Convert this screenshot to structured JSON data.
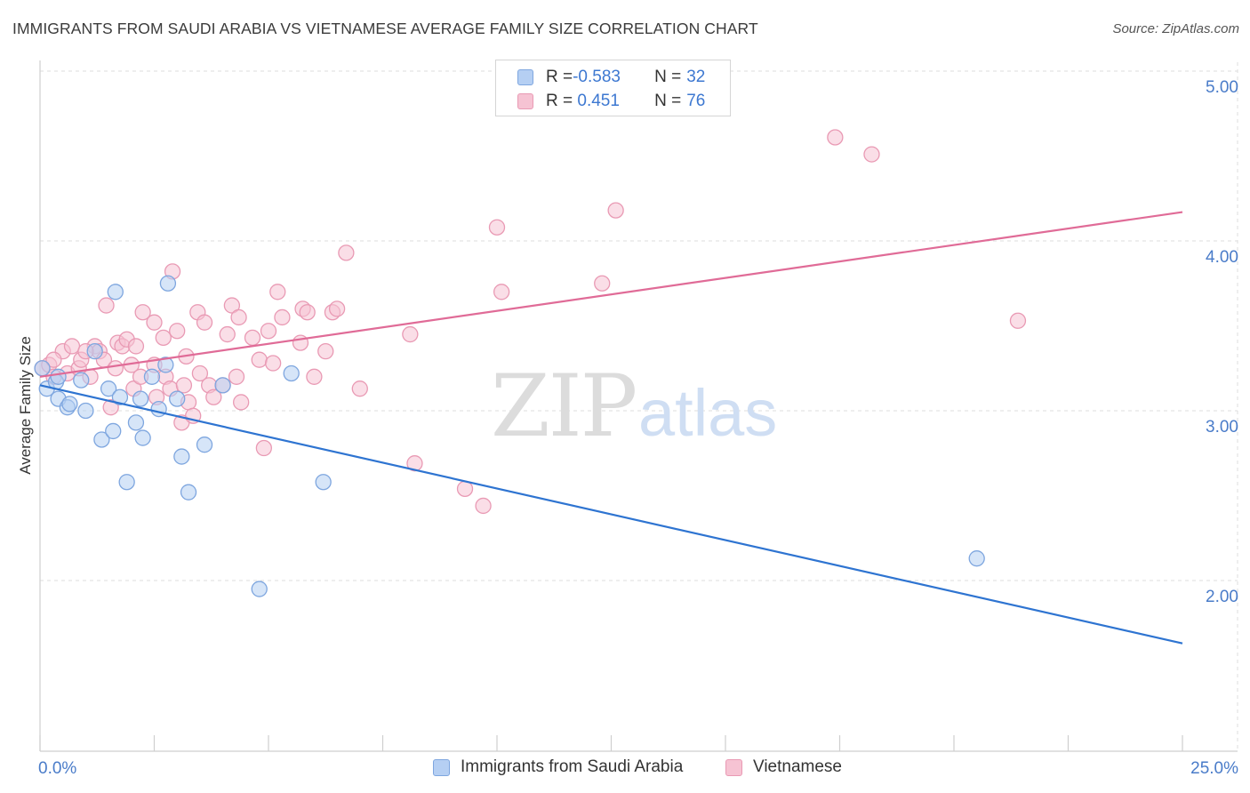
{
  "header": {
    "title": "IMMIGRANTS FROM SAUDI ARABIA VS VIETNAMESE AVERAGE FAMILY SIZE CORRELATION CHART",
    "source": "Source: ZipAtlas.com"
  },
  "watermark": {
    "zip": "ZIP",
    "atlas": "atlas"
  },
  "legend_stats": {
    "blue": {
      "r_label": "R = ",
      "r_value": "-0.583",
      "n_label": "N = ",
      "n_value": "32"
    },
    "pink": {
      "r_label": "R = ",
      "r_value": " 0.451",
      "n_label": "N = ",
      "n_value": "76"
    }
  },
  "bottom_legend": {
    "blue": "Immigrants from Saudi Arabia",
    "pink": "Vietnamese"
  },
  "colors": {
    "blue_fill": "#b5cff3",
    "blue_stroke": "#7ea6df",
    "blue_line": "#2e74d1",
    "pink_fill": "#f6c3d3",
    "pink_stroke": "#e99ab4",
    "pink_line": "#e06b97",
    "grid": "#dddddd",
    "axis_label": "#4a7cc9"
  },
  "chart_data": {
    "type": "scatter",
    "title": "IMMIGRANTS FROM SAUDI ARABIA VS VIETNAMESE AVERAGE FAMILY SIZE CORRELATION CHART",
    "xlabel": "",
    "ylabel": "Average Family Size",
    "xlim": [
      0,
      25
    ],
    "ylim": [
      1.0,
      5.1
    ],
    "x_tick_labels": [
      "0.0%",
      "25.0%"
    ],
    "y_ticks": [
      2.0,
      3.0,
      4.0,
      5.0
    ],
    "y_tick_labels": [
      "2.00",
      "3.00",
      "4.00",
      "5.00"
    ],
    "grid": true,
    "series": [
      {
        "name": "Immigrants from Saudi Arabia",
        "color": "blue",
        "points": [
          [
            0.05,
            3.25
          ],
          [
            0.15,
            3.13
          ],
          [
            0.35,
            3.17
          ],
          [
            0.4,
            3.2
          ],
          [
            0.4,
            3.07
          ],
          [
            0.6,
            3.02
          ],
          [
            0.65,
            3.04
          ],
          [
            0.9,
            3.18
          ],
          [
            1.0,
            3.0
          ],
          [
            1.2,
            3.35
          ],
          [
            1.35,
            2.83
          ],
          [
            1.5,
            3.13
          ],
          [
            1.6,
            2.88
          ],
          [
            1.65,
            3.7
          ],
          [
            1.75,
            3.08
          ],
          [
            1.9,
            2.58
          ],
          [
            2.1,
            2.93
          ],
          [
            2.2,
            3.07
          ],
          [
            2.25,
            2.84
          ],
          [
            2.45,
            3.2
          ],
          [
            2.6,
            3.01
          ],
          [
            2.75,
            3.27
          ],
          [
            2.8,
            3.75
          ],
          [
            3.0,
            3.07
          ],
          [
            3.1,
            2.73
          ],
          [
            3.25,
            2.52
          ],
          [
            3.6,
            2.8
          ],
          [
            4.0,
            3.15
          ],
          [
            4.8,
            1.95
          ],
          [
            5.5,
            3.22
          ],
          [
            6.2,
            2.58
          ],
          [
            20.5,
            2.13
          ]
        ],
        "trend": {
          "x": [
            0,
            25
          ],
          "y": [
            3.15,
            1.63
          ]
        }
      },
      {
        "name": "Vietnamese",
        "color": "pink",
        "points": [
          [
            0.05,
            3.25
          ],
          [
            0.2,
            3.27
          ],
          [
            0.3,
            3.2
          ],
          [
            0.5,
            3.35
          ],
          [
            0.6,
            3.22
          ],
          [
            0.7,
            3.38
          ],
          [
            0.85,
            3.25
          ],
          [
            0.9,
            3.3
          ],
          [
            1.1,
            3.2
          ],
          [
            1.2,
            3.38
          ],
          [
            1.3,
            3.35
          ],
          [
            1.4,
            3.3
          ],
          [
            1.45,
            3.62
          ],
          [
            1.55,
            3.02
          ],
          [
            1.65,
            3.25
          ],
          [
            1.7,
            3.4
          ],
          [
            1.8,
            3.38
          ],
          [
            1.9,
            3.42
          ],
          [
            2.0,
            3.27
          ],
          [
            2.05,
            3.13
          ],
          [
            2.1,
            3.38
          ],
          [
            2.2,
            3.2
          ],
          [
            2.25,
            3.58
          ],
          [
            2.5,
            3.52
          ],
          [
            2.55,
            3.08
          ],
          [
            2.7,
            3.43
          ],
          [
            2.75,
            3.2
          ],
          [
            2.85,
            3.13
          ],
          [
            2.9,
            3.82
          ],
          [
            3.0,
            3.47
          ],
          [
            3.1,
            2.93
          ],
          [
            3.15,
            3.15
          ],
          [
            3.25,
            3.05
          ],
          [
            3.35,
            2.97
          ],
          [
            3.45,
            3.58
          ],
          [
            3.5,
            3.22
          ],
          [
            3.6,
            3.52
          ],
          [
            3.7,
            3.15
          ],
          [
            3.8,
            3.08
          ],
          [
            4.0,
            3.15
          ],
          [
            4.1,
            3.45
          ],
          [
            4.2,
            3.62
          ],
          [
            4.3,
            3.2
          ],
          [
            4.35,
            3.55
          ],
          [
            4.4,
            3.05
          ],
          [
            4.65,
            3.43
          ],
          [
            4.8,
            3.3
          ],
          [
            4.9,
            2.78
          ],
          [
            5.0,
            3.47
          ],
          [
            5.1,
            3.28
          ],
          [
            5.2,
            3.7
          ],
          [
            5.3,
            3.55
          ],
          [
            5.7,
            3.4
          ],
          [
            5.75,
            3.6
          ],
          [
            5.85,
            3.58
          ],
          [
            6.0,
            3.2
          ],
          [
            6.25,
            3.35
          ],
          [
            6.4,
            3.58
          ],
          [
            6.5,
            3.6
          ],
          [
            6.7,
            3.93
          ],
          [
            7.0,
            3.13
          ],
          [
            8.1,
            3.45
          ],
          [
            8.2,
            2.69
          ],
          [
            9.3,
            2.54
          ],
          [
            9.7,
            2.44
          ],
          [
            10.0,
            4.08
          ],
          [
            10.1,
            3.7
          ],
          [
            12.3,
            3.75
          ],
          [
            12.6,
            4.18
          ],
          [
            17.4,
            4.61
          ],
          [
            18.2,
            4.51
          ],
          [
            21.4,
            3.53
          ],
          [
            0.3,
            3.3
          ],
          [
            1.0,
            3.35
          ],
          [
            2.5,
            3.27
          ],
          [
            3.2,
            3.32
          ]
        ],
        "trend": {
          "x": [
            0,
            25
          ],
          "y": [
            3.2,
            4.17
          ]
        }
      }
    ]
  }
}
